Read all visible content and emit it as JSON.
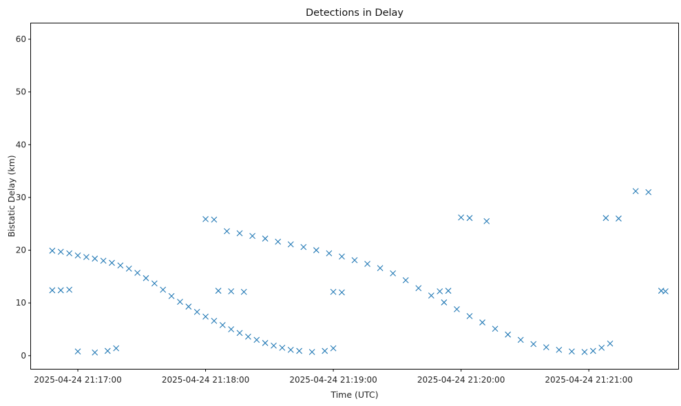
{
  "chart_data": {
    "type": "scatter",
    "title": "Detections in Delay",
    "xlabel": "Time (UTC)",
    "ylabel": "Bistatic Delay (km)",
    "x_axis_type": "time",
    "xlim": [
      "2025-04-24 21:16:38",
      "2025-04-24 21:21:42"
    ],
    "ylim": [
      -2.5,
      63
    ],
    "x_ticks": [
      "2025-04-24 21:17:00",
      "2025-04-24 21:18:00",
      "2025-04-24 21:19:00",
      "2025-04-24 21:20:00",
      "2025-04-24 21:21:00"
    ],
    "y_ticks": [
      0,
      10,
      20,
      30,
      40,
      50,
      60
    ],
    "marker": "x",
    "color": "#1f77b4",
    "grid": false,
    "series": [
      {
        "points": [
          [
            "2025-04-24 21:16:48",
            19.9
          ],
          [
            "2025-04-24 21:16:52",
            19.7
          ],
          [
            "2025-04-24 21:16:56",
            19.4
          ],
          [
            "2025-04-24 21:17:00",
            19.0
          ],
          [
            "2025-04-24 21:17:04",
            18.7
          ],
          [
            "2025-04-24 21:17:08",
            18.4
          ],
          [
            "2025-04-24 21:17:12",
            18.0
          ],
          [
            "2025-04-24 21:17:16",
            17.6
          ],
          [
            "2025-04-24 21:17:20",
            17.1
          ],
          [
            "2025-04-24 21:17:24",
            16.5
          ],
          [
            "2025-04-24 21:17:28",
            15.7
          ],
          [
            "2025-04-24 21:17:32",
            14.7
          ],
          [
            "2025-04-24 21:17:36",
            13.7
          ],
          [
            "2025-04-24 21:17:40",
            12.5
          ],
          [
            "2025-04-24 21:17:44",
            11.3
          ],
          [
            "2025-04-24 21:17:48",
            10.2
          ],
          [
            "2025-04-24 21:17:52",
            9.3
          ],
          [
            "2025-04-24 21:17:56",
            8.3
          ],
          [
            "2025-04-24 21:18:00",
            7.4
          ],
          [
            "2025-04-24 21:18:04",
            6.6
          ],
          [
            "2025-04-24 21:18:08",
            5.8
          ],
          [
            "2025-04-24 21:18:12",
            5.0
          ],
          [
            "2025-04-24 21:18:16",
            4.3
          ],
          [
            "2025-04-24 21:18:20",
            3.6
          ],
          [
            "2025-04-24 21:18:24",
            3.0
          ],
          [
            "2025-04-24 21:18:28",
            2.4
          ],
          [
            "2025-04-24 21:18:32",
            1.9
          ],
          [
            "2025-04-24 21:18:36",
            1.5
          ],
          [
            "2025-04-24 21:18:40",
            1.1
          ],
          [
            "2025-04-24 21:18:44",
            0.9
          ]
        ]
      },
      {
        "points": [
          [
            "2025-04-24 21:18:10",
            23.6
          ],
          [
            "2025-04-24 21:18:16",
            23.2
          ],
          [
            "2025-04-24 21:18:22",
            22.7
          ],
          [
            "2025-04-24 21:18:28",
            22.2
          ],
          [
            "2025-04-24 21:18:34",
            21.6
          ],
          [
            "2025-04-24 21:18:40",
            21.1
          ],
          [
            "2025-04-24 21:18:46",
            20.6
          ],
          [
            "2025-04-24 21:18:52",
            20.0
          ],
          [
            "2025-04-24 21:18:58",
            19.4
          ],
          [
            "2025-04-24 21:19:04",
            18.8
          ],
          [
            "2025-04-24 21:19:10",
            18.1
          ],
          [
            "2025-04-24 21:19:16",
            17.4
          ],
          [
            "2025-04-24 21:19:22",
            16.6
          ],
          [
            "2025-04-24 21:19:28",
            15.6
          ],
          [
            "2025-04-24 21:19:34",
            14.3
          ],
          [
            "2025-04-24 21:19:40",
            12.8
          ],
          [
            "2025-04-24 21:19:46",
            11.4
          ],
          [
            "2025-04-24 21:19:52",
            10.1
          ],
          [
            "2025-04-24 21:19:58",
            8.8
          ],
          [
            "2025-04-24 21:20:04",
            7.5
          ],
          [
            "2025-04-24 21:20:10",
            6.3
          ],
          [
            "2025-04-24 21:20:16",
            5.1
          ],
          [
            "2025-04-24 21:20:22",
            4.0
          ],
          [
            "2025-04-24 21:20:28",
            3.0
          ],
          [
            "2025-04-24 21:20:34",
            2.2
          ],
          [
            "2025-04-24 21:20:40",
            1.6
          ],
          [
            "2025-04-24 21:20:46",
            1.1
          ],
          [
            "2025-04-24 21:20:52",
            0.8
          ],
          [
            "2025-04-24 21:20:58",
            0.7
          ]
        ]
      },
      {
        "points": [
          [
            "2025-04-24 21:16:48",
            12.4
          ],
          [
            "2025-04-24 21:16:52",
            12.4
          ],
          [
            "2025-04-24 21:16:56",
            12.5
          ],
          [
            "2025-04-24 21:18:00",
            25.9
          ],
          [
            "2025-04-24 21:18:04",
            25.8
          ],
          [
            "2025-04-24 21:18:06",
            12.3
          ],
          [
            "2025-04-24 21:18:12",
            12.2
          ],
          [
            "2025-04-24 21:18:18",
            12.1
          ],
          [
            "2025-04-24 21:19:00",
            12.1
          ],
          [
            "2025-04-24 21:19:04",
            12.0
          ],
          [
            "2025-04-24 21:19:50",
            12.2
          ],
          [
            "2025-04-24 21:19:54",
            12.3
          ],
          [
            "2025-04-24 21:20:00",
            26.2
          ],
          [
            "2025-04-24 21:20:04",
            26.1
          ],
          [
            "2025-04-24 21:20:12",
            25.5
          ],
          [
            "2025-04-24 21:21:08",
            26.1
          ],
          [
            "2025-04-24 21:21:14",
            26.0
          ],
          [
            "2025-04-24 21:21:22",
            31.2
          ],
          [
            "2025-04-24 21:21:28",
            31.0
          ],
          [
            "2025-04-24 21:21:34",
            12.3
          ],
          [
            "2025-04-24 21:21:36",
            12.2
          ],
          [
            "2025-04-24 21:17:00",
            0.8
          ],
          [
            "2025-04-24 21:17:08",
            0.6
          ],
          [
            "2025-04-24 21:17:14",
            0.9
          ],
          [
            "2025-04-24 21:17:18",
            1.4
          ],
          [
            "2025-04-24 21:18:50",
            0.7
          ],
          [
            "2025-04-24 21:18:56",
            0.9
          ],
          [
            "2025-04-24 21:19:00",
            1.4
          ],
          [
            "2025-04-24 21:21:02",
            0.9
          ],
          [
            "2025-04-24 21:21:06",
            1.5
          ],
          [
            "2025-04-24 21:21:10",
            2.3
          ]
        ]
      }
    ]
  }
}
